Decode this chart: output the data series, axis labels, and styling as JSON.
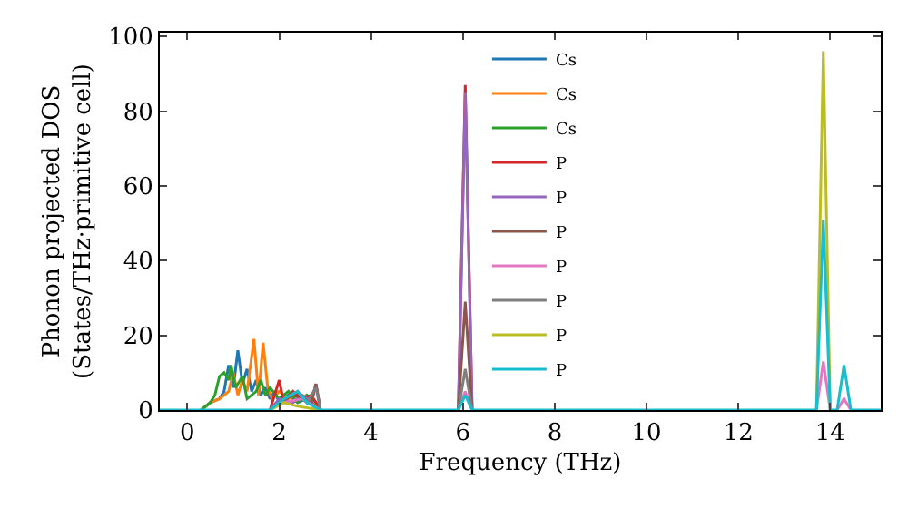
{
  "chart_data": {
    "type": "line",
    "xlabel": "Frequency (THz)",
    "ylabel": "Phonon projected DOS\n(States/THz·primitive cell)",
    "xlim": [
      -0.6,
      15.1
    ],
    "ylim": [
      0,
      101
    ],
    "xticks": [
      0,
      2,
      4,
      6,
      8,
      10,
      12,
      14
    ],
    "yticks": [
      0,
      20,
      40,
      60,
      80,
      100
    ],
    "legend": "top",
    "series": [
      {
        "name": "Cs",
        "color": "#1f77b4",
        "x": [
          0.3,
          0.5,
          0.7,
          0.8,
          0.9,
          1.0,
          1.1,
          1.2,
          1.3,
          1.4,
          1.5,
          1.6,
          1.7,
          1.8,
          1.9,
          2.0,
          2.2,
          2.4,
          2.6,
          2.8,
          2.9
        ],
        "values": [
          0,
          2,
          3,
          5,
          12,
          6,
          16,
          7,
          11,
          5,
          8,
          4,
          6,
          3,
          5,
          2,
          4,
          2,
          3,
          1,
          0
        ]
      },
      {
        "name": "Cs",
        "color": "#ff7f0e",
        "x": [
          0.3,
          0.5,
          0.7,
          0.9,
          1.0,
          1.1,
          1.2,
          1.3,
          1.45,
          1.55,
          1.65,
          1.75,
          1.85,
          2.0,
          2.2,
          2.4,
          2.6,
          2.8,
          2.9
        ],
        "values": [
          0,
          2,
          3,
          5,
          10,
          4,
          8,
          5,
          19,
          4,
          18,
          6,
          3,
          5,
          3,
          4,
          2,
          1,
          0
        ]
      },
      {
        "name": "Cs",
        "color": "#2ca02c",
        "x": [
          0.3,
          0.5,
          0.6,
          0.7,
          0.8,
          0.9,
          0.95,
          1.05,
          1.2,
          1.3,
          1.5,
          1.6,
          1.7,
          1.8,
          2.0,
          2.2,
          2.4,
          2.6,
          2.8,
          2.9
        ],
        "values": [
          0,
          2,
          4,
          9,
          10,
          8,
          12,
          6,
          9,
          3,
          5,
          8,
          4,
          6,
          3,
          5,
          2,
          4,
          2,
          0
        ]
      },
      {
        "name": "P",
        "color": "#d62728",
        "x": [
          1.8,
          2.0,
          2.1,
          2.3,
          2.5,
          2.7,
          2.9,
          null,
          5.9,
          6.05,
          6.2
        ],
        "values": [
          0,
          8,
          2,
          5,
          3,
          4,
          0,
          null,
          0,
          87,
          0
        ]
      },
      {
        "name": "P",
        "color": "#9467bd",
        "x": [
          1.8,
          2.0,
          2.3,
          2.5,
          2.7,
          2.8,
          2.9,
          null,
          5.9,
          6.05,
          6.2
        ],
        "values": [
          0,
          3,
          2,
          4,
          2,
          7,
          0,
          null,
          0,
          85,
          0
        ]
      },
      {
        "name": "P",
        "color": "#8c564b",
        "x": [
          1.8,
          2.0,
          2.3,
          2.5,
          2.7,
          2.8,
          2.9,
          null,
          5.9,
          6.05,
          6.2
        ],
        "values": [
          0,
          2,
          4,
          3,
          2,
          7,
          0,
          null,
          0,
          29,
          0
        ]
      },
      {
        "name": "P",
        "color": "#e377c2",
        "x": [
          1.8,
          2.1,
          2.5,
          2.9,
          null,
          5.9,
          6.05,
          6.2,
          null,
          13.7,
          13.85,
          14.0,
          null,
          14.15,
          14.3,
          14.45
        ],
        "values": [
          0,
          2,
          3,
          0,
          null,
          0,
          5,
          0,
          null,
          0,
          13,
          0,
          null,
          0,
          3,
          0
        ]
      },
      {
        "name": "P",
        "color": "#7f7f7f",
        "x": [
          1.8,
          2.1,
          2.4,
          2.6,
          2.8,
          2.9,
          null,
          5.9,
          6.05,
          6.2
        ],
        "values": [
          0,
          3,
          5,
          2,
          6,
          0,
          null,
          0,
          11,
          0
        ]
      },
      {
        "name": "P",
        "color": "#bcbd22",
        "x": [
          1.8,
          2.1,
          2.4,
          2.9,
          null,
          13.7,
          13.85,
          14.0
        ],
        "values": [
          0,
          2,
          1,
          0,
          null,
          0,
          96,
          0
        ]
      },
      {
        "name": "P",
        "color": "#17becf",
        "x": [
          -0.6,
          1.8,
          2.1,
          2.4,
          2.6,
          2.9,
          5.9,
          6.05,
          6.2,
          13.7,
          13.85,
          14.0,
          14.15,
          14.3,
          14.45,
          15.1
        ],
        "values": [
          0,
          0,
          3,
          5,
          2,
          0,
          0,
          4,
          0,
          0,
          51,
          0,
          0,
          12,
          0,
          0
        ]
      }
    ]
  }
}
